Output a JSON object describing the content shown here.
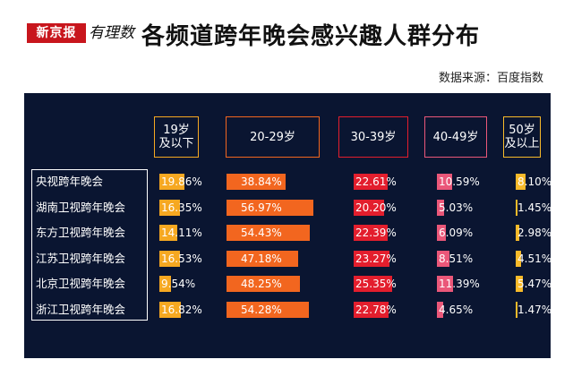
{
  "branding": {
    "logo": "新京报",
    "logo_script": "有理数"
  },
  "title": "各频道跨年晚会感兴趣人群分布",
  "source": "数据来源：百度指数",
  "colors": {
    "panel_bg": "#0a1531",
    "groups": [
      "#f6a821",
      "#f2661f",
      "#e31e2d",
      "#ea5779",
      "#f8ba2a"
    ]
  },
  "chart_data": {
    "type": "table",
    "title": "各频道跨年晚会感兴趣人群分布",
    "groups": [
      "19岁\n及以下",
      "20-29岁",
      "30-39岁",
      "40-49岁",
      "50岁\n及以上"
    ],
    "rows": [
      {
        "name": "央视跨年晚会",
        "values": [
          19.86,
          38.84,
          22.61,
          10.59,
          8.1
        ],
        "labels": [
          "19.86%",
          "38.84%",
          "22.61%",
          "10.59%",
          "8.10%"
        ]
      },
      {
        "name": "湖南卫视跨年晚会",
        "values": [
          16.35,
          56.97,
          20.2,
          5.03,
          1.45
        ],
        "labels": [
          "16.35%",
          "56.97%",
          "20.20%",
          "5.03%",
          "1.45%"
        ]
      },
      {
        "name": "东方卫视跨年晚会",
        "values": [
          14.11,
          54.43,
          22.39,
          6.09,
          2.98
        ],
        "labels": [
          "14.11%",
          "54.43%",
          "22.39%",
          "6.09%",
          "2.98%"
        ]
      },
      {
        "name": "江苏卫视跨年晚会",
        "values": [
          16.53,
          47.18,
          23.27,
          8.51,
          4.51
        ],
        "labels": [
          "16.53%",
          "47.18%",
          "23.27%",
          "8.51%",
          "4.51%"
        ]
      },
      {
        "name": "北京卫视跨年晚会",
        "values": [
          9.54,
          48.25,
          25.35,
          11.39,
          5.47
        ],
        "labels": [
          "9.54%",
          "48.25%",
          "25.35%",
          "11.39%",
          "5.47%"
        ]
      },
      {
        "name": "浙江卫视跨年晚会",
        "values": [
          16.82,
          54.28,
          22.78,
          4.65,
          1.47
        ],
        "labels": [
          "16.82%",
          "54.28%",
          "22.78%",
          "4.65%",
          "1.47%"
        ]
      }
    ]
  }
}
